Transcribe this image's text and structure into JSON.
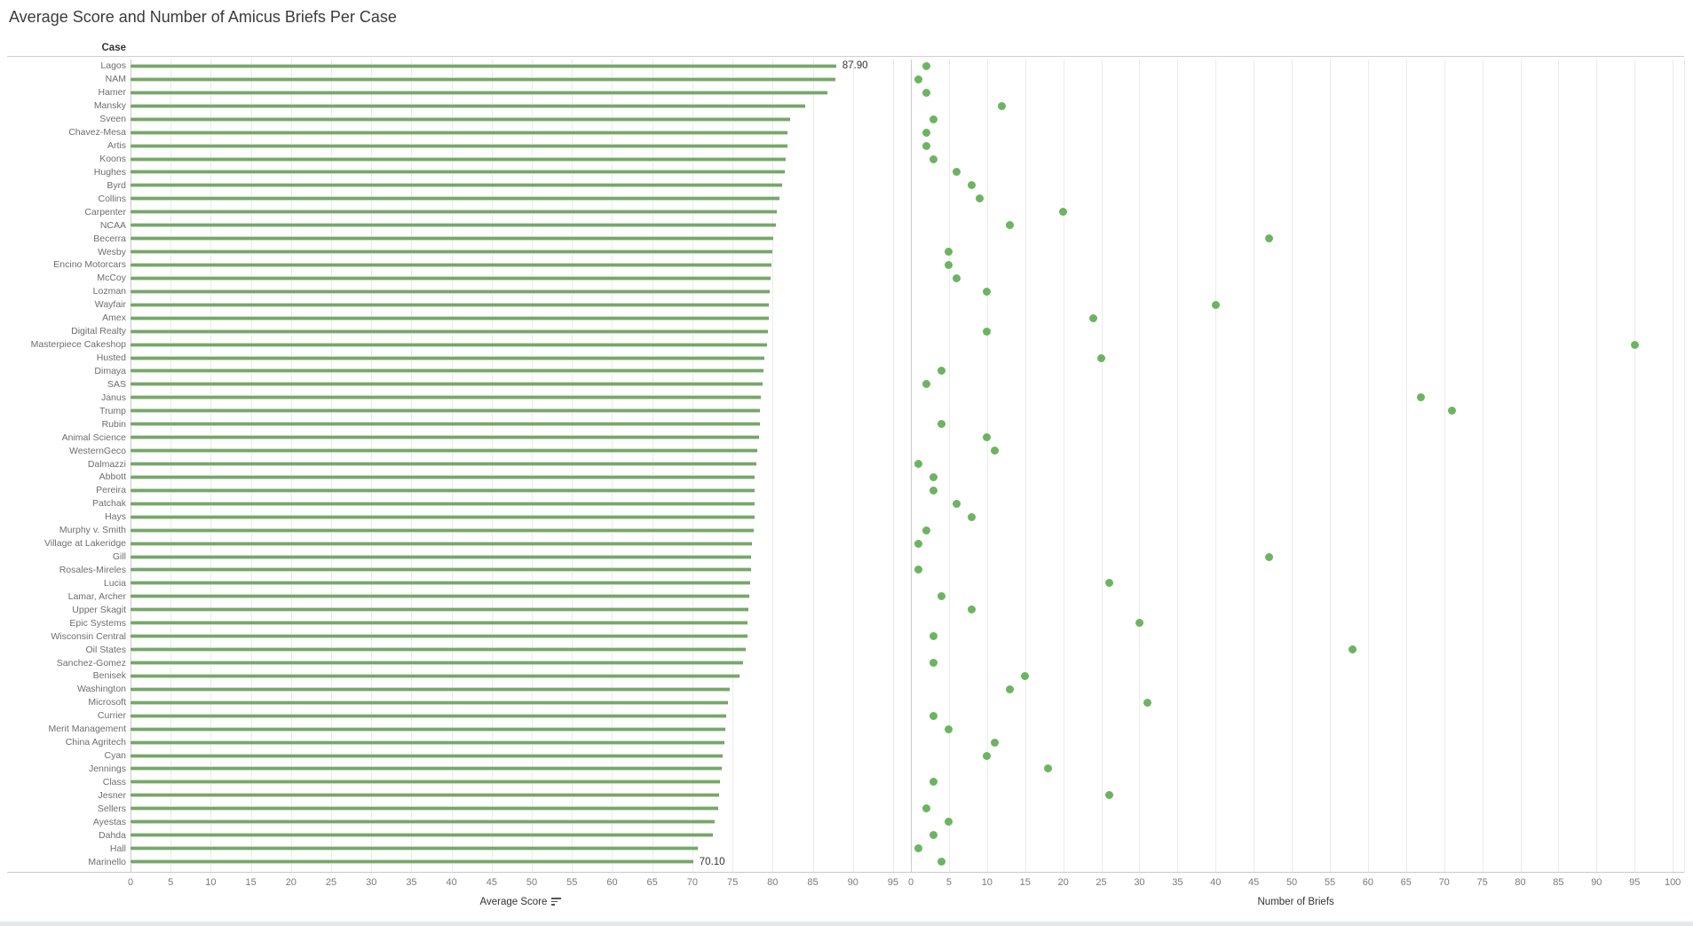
{
  "title": "Average Score and Number of Amicus Briefs Per Case",
  "row_header": "Case",
  "colors": {
    "bar_fill": "#74a967",
    "bar_edge": "#ccd9c6",
    "dot": "#6db462",
    "gridline": "#ebebeb",
    "panel_edge": "#cccccc",
    "axis_line": "#c9c9c9"
  },
  "chart_data": {
    "type": "bar",
    "subtype": "dual-axis horizontal bar + dot strip",
    "title": "Average Score and Number of Amicus Briefs Per Case",
    "categories_label": "Case",
    "categories": [
      "Lagos",
      "NAM",
      "Hamer",
      "Mansky",
      "Sveen",
      "Chavez-Mesa",
      "Artis",
      "Koons",
      "Hughes",
      "Byrd",
      "Collins",
      "Carpenter",
      "NCAA",
      "Becerra",
      "Wesby",
      "Encino Motorcars",
      "McCoy",
      "Lozman",
      "Wayfair",
      "Amex",
      "Digital Realty",
      "Masterpiece Cakeshop",
      "Husted",
      "Dimaya",
      "SAS",
      "Janus",
      "Trump",
      "Rubin",
      "Animal Science",
      "WesternGeco",
      "Dalmazzi",
      "Abbott",
      "Pereira",
      "Patchak",
      "Hays",
      "Murphy v. Smith",
      "Village at Lakeridge",
      "Gill",
      "Rosales-Mireles",
      "Lucia",
      "Lamar, Archer",
      "Upper Skagit",
      "Epic Systems",
      "Wisconsin Central",
      "Oil States",
      "Sanchez-Gomez",
      "Benisek",
      "Washington",
      "Microsoft",
      "Currier",
      "Merit Management",
      "China Agritech",
      "Cyan",
      "Jennings",
      "Class",
      "Jesner",
      "Sellers",
      "Ayestas",
      "Dahda",
      "Hall",
      "Marinello"
    ],
    "series": [
      {
        "name": "Average Score",
        "axis": "left",
        "values": [
          87.9,
          87.8,
          86.8,
          84.1,
          82.2,
          81.9,
          81.8,
          81.6,
          81.5,
          81.2,
          80.9,
          80.5,
          80.4,
          80.1,
          80.0,
          79.9,
          79.7,
          79.6,
          79.5,
          79.5,
          79.4,
          79.3,
          79.0,
          78.9,
          78.7,
          78.5,
          78.4,
          78.4,
          78.3,
          78.1,
          78.0,
          77.8,
          77.7,
          77.7,
          77.7,
          77.6,
          77.4,
          77.3,
          77.3,
          77.2,
          77.1,
          77.0,
          76.9,
          76.9,
          76.6,
          76.3,
          75.9,
          74.7,
          74.4,
          74.2,
          74.1,
          74.0,
          73.8,
          73.7,
          73.4,
          73.3,
          73.2,
          72.8,
          72.6,
          70.7,
          70.1
        ]
      },
      {
        "name": "Number of Briefs",
        "axis": "right",
        "values": [
          2,
          1,
          2,
          12,
          3,
          2,
          2,
          3,
          6,
          8,
          9,
          20,
          13,
          47,
          5,
          5,
          6,
          10,
          40,
          24,
          10,
          95,
          25,
          4,
          2,
          67,
          71,
          4,
          10,
          11,
          1,
          3,
          3,
          6,
          8,
          2,
          1,
          47,
          1,
          26,
          4,
          8,
          30,
          3,
          58,
          3,
          15,
          13,
          31,
          3,
          5,
          11,
          10,
          18,
          3,
          26,
          2,
          5,
          3,
          1,
          4
        ]
      }
    ],
    "axes": {
      "left": {
        "label": "Average Score",
        "min": 0,
        "max": 97,
        "step": 5,
        "ticks": [
          0,
          5,
          10,
          15,
          20,
          25,
          30,
          35,
          40,
          45,
          50,
          55,
          60,
          65,
          70,
          75,
          80,
          85,
          90,
          95
        ]
      },
      "right": {
        "label": "Number of Briefs",
        "min": 0,
        "max": 101.5,
        "step": 5,
        "ticks": [
          0,
          5,
          10,
          15,
          20,
          25,
          30,
          35,
          40,
          45,
          50,
          55,
          60,
          65,
          70,
          75,
          80,
          85,
          90,
          95,
          100
        ]
      }
    },
    "annotations": [
      {
        "row": 0,
        "text": "87.90"
      },
      {
        "row": 60,
        "text": "70.10"
      }
    ],
    "legend": "none",
    "grid": true,
    "sorted": "descending by Average Score"
  }
}
